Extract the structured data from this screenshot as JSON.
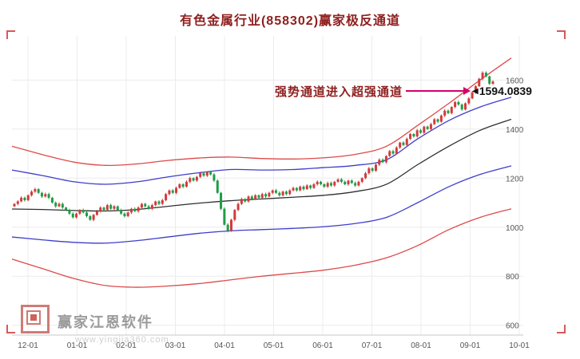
{
  "annotation": {
    "label": "强势通道进入超强通道",
    "price": "1594.0839",
    "caret": "◀",
    "arrow_color": "#d4006a"
  },
  "watermark": {
    "brand": "赢家江恩软件",
    "url": "www.yingjia360.com"
  },
  "chart_data": {
    "type": "candlestick",
    "title": "有色金属行业(858302)赢家极反通道",
    "x_tick_labels": [
      "12-01",
      "01-01",
      "02-01",
      "03-01",
      "04-01",
      "05-01",
      "06-01",
      "07-01",
      "08-01",
      "09-01",
      "10-01"
    ],
    "y_ticks": [
      600,
      800,
      1000,
      1200,
      1400,
      1600
    ],
    "ylim": [
      560,
      1780
    ],
    "last_price": 1594.0839,
    "grid": true,
    "colors": {
      "up": "#d23b3b",
      "down": "#1f9d45",
      "grid": "#ececec",
      "axis_text": "#555555",
      "title": "#8f1f1f",
      "annotation_arrow": "#d4006a"
    },
    "closes": [
      1095,
      1105,
      1120,
      1110,
      1130,
      1145,
      1155,
      1140,
      1125,
      1135,
      1120,
      1100,
      1085,
      1095,
      1080,
      1070,
      1055,
      1040,
      1055,
      1070,
      1060,
      1045,
      1030,
      1050,
      1065,
      1080,
      1070,
      1090,
      1075,
      1085,
      1070,
      1055,
      1045,
      1060,
      1075,
      1065,
      1080,
      1095,
      1085,
      1075,
      1090,
      1105,
      1095,
      1110,
      1135,
      1150,
      1140,
      1160,
      1175,
      1165,
      1185,
      1200,
      1190,
      1205,
      1220,
      1210,
      1225,
      1215,
      1190,
      1140,
      1075,
      1010,
      985,
      1030,
      1070,
      1095,
      1115,
      1105,
      1125,
      1115,
      1130,
      1120,
      1135,
      1125,
      1140,
      1150,
      1140,
      1130,
      1145,
      1135,
      1150,
      1160,
      1150,
      1165,
      1155,
      1170,
      1160,
      1175,
      1185,
      1175,
      1165,
      1180,
      1170,
      1185,
      1195,
      1185,
      1175,
      1190,
      1180,
      1170,
      1185,
      1200,
      1220,
      1240,
      1230,
      1255,
      1275,
      1265,
      1290,
      1310,
      1300,
      1325,
      1345,
      1335,
      1360,
      1380,
      1370,
      1395,
      1385,
      1410,
      1400,
      1420,
      1440,
      1430,
      1455,
      1475,
      1465,
      1490,
      1510,
      1500,
      1480,
      1505,
      1525,
      1550,
      1575,
      1605,
      1630,
      1615,
      1585,
      1594.08
    ],
    "channels": [
      {
        "name": "outer-upper-red",
        "color": "#dd4a4a",
        "values": [
          1330,
          1295,
          1265,
          1252,
          1258,
          1272,
          1282,
          1286,
          1280,
          1278,
          1283,
          1297,
          1330,
          1415,
          1505,
          1600,
          1690
        ]
      },
      {
        "name": "inner-upper-blue",
        "color": "#3d3dcc",
        "values": [
          1233,
          1210,
          1185,
          1175,
          1185,
          1205,
          1222,
          1235,
          1233,
          1235,
          1243,
          1252,
          1275,
          1360,
          1435,
          1490,
          1530
        ]
      },
      {
        "name": "middle-black",
        "color": "#2f2f2f",
        "values": [
          1074,
          1072,
          1068,
          1066,
          1072,
          1085,
          1098,
          1108,
          1115,
          1122,
          1130,
          1145,
          1175,
          1255,
          1330,
          1395,
          1440
        ]
      },
      {
        "name": "inner-lower-blue",
        "color": "#3d3dcc",
        "values": [
          960,
          948,
          938,
          935,
          945,
          960,
          975,
          985,
          990,
          995,
          1002,
          1015,
          1040,
          1100,
          1165,
          1215,
          1250
        ]
      },
      {
        "name": "outer-lower-red",
        "color": "#dd4a4a",
        "values": [
          870,
          830,
          790,
          762,
          755,
          760,
          770,
          785,
          800,
          812,
          825,
          845,
          875,
          925,
          990,
          1040,
          1075
        ]
      }
    ]
  }
}
